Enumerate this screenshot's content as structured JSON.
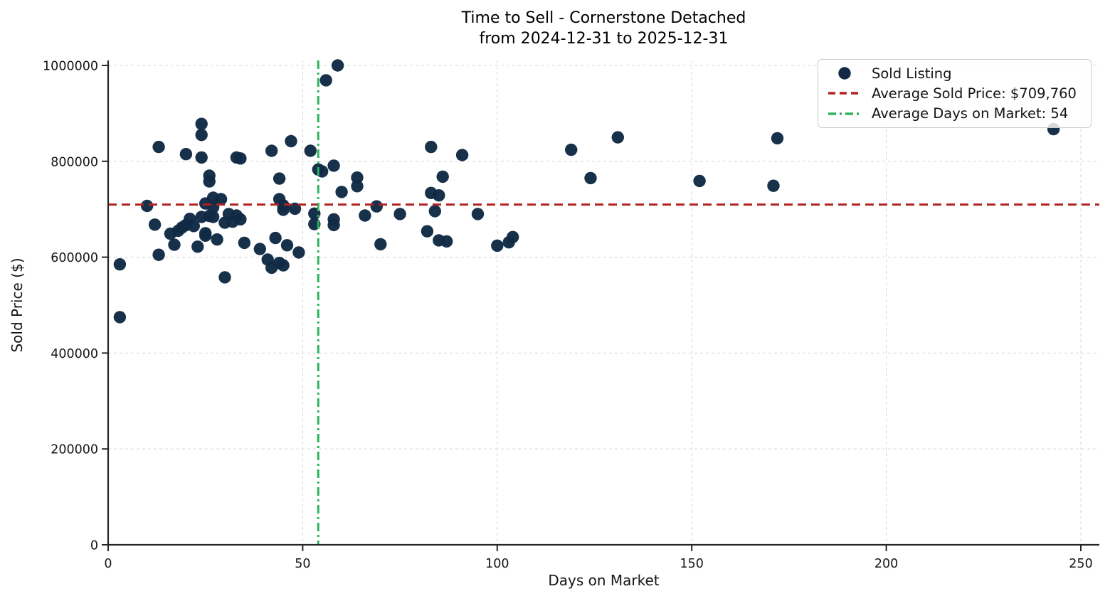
{
  "chart_data": {
    "type": "scatter",
    "title": "Time to Sell - Cornerstone Detached\nfrom 2024-12-31 to 2025-12-31",
    "title_lines": [
      "Time to Sell - Cornerstone Detached",
      "from 2024-12-31 to 2025-12-31"
    ],
    "xlabel": "Days on Market",
    "ylabel": "Sold Price ($)",
    "xlim": [
      0,
      250
    ],
    "ylim": [
      0,
      1000000
    ],
    "x_ticks": [
      0,
      50,
      100,
      150,
      200,
      250
    ],
    "y_ticks": [
      0,
      200000,
      400000,
      600000,
      800000,
      1000000
    ],
    "grid": true,
    "legend_position": "upper right",
    "avg_sold_price": 709760,
    "avg_days_on_market": 54,
    "legend": {
      "items": [
        {
          "label": "Sold Listing",
          "marker": "dot"
        },
        {
          "label": "Average Sold Price: $709,760",
          "marker": "dashed-line"
        },
        {
          "label": "Average Days on Market: 54",
          "marker": "dashdot-line"
        }
      ]
    },
    "colors": {
      "dot": "#112a45",
      "avg_price_line": "#b22222",
      "avg_dom_line": "#2db360",
      "grid": "#d8d8d8",
      "spine": "#262626"
    },
    "series": [
      {
        "name": "Sold Listing",
        "points": [
          [
            3,
            585000
          ],
          [
            3,
            475000
          ],
          [
            10,
            707000
          ],
          [
            12,
            668000
          ],
          [
            13,
            830000
          ],
          [
            13,
            605000
          ],
          [
            16,
            649000
          ],
          [
            17,
            626000
          ],
          [
            18,
            655000
          ],
          [
            19,
            662000
          ],
          [
            20,
            815000
          ],
          [
            20,
            667000
          ],
          [
            21,
            680000
          ],
          [
            22,
            665000
          ],
          [
            23,
            622000
          ],
          [
            24,
            878000
          ],
          [
            24,
            855000
          ],
          [
            24,
            808000
          ],
          [
            24,
            684000
          ],
          [
            25,
            712000
          ],
          [
            25,
            650000
          ],
          [
            25,
            645000
          ],
          [
            26,
            770000
          ],
          [
            26,
            758000
          ],
          [
            26,
            686000
          ],
          [
            27,
            724000
          ],
          [
            27,
            704000
          ],
          [
            27,
            684000
          ],
          [
            28,
            637000
          ],
          [
            29,
            721000
          ],
          [
            30,
            672000
          ],
          [
            30,
            558000
          ],
          [
            31,
            690000
          ],
          [
            32,
            674000
          ],
          [
            33,
            808000
          ],
          [
            33,
            687000
          ],
          [
            34,
            806000
          ],
          [
            34,
            679000
          ],
          [
            35,
            630000
          ],
          [
            39,
            617000
          ],
          [
            41,
            595000
          ],
          [
            42,
            822000
          ],
          [
            42,
            578000
          ],
          [
            43,
            640000
          ],
          [
            44,
            764000
          ],
          [
            44,
            721000
          ],
          [
            44,
            588000
          ],
          [
            45,
            708000
          ],
          [
            45,
            699000
          ],
          [
            45,
            583000
          ],
          [
            46,
            625000
          ],
          [
            47,
            842000
          ],
          [
            48,
            701000
          ],
          [
            49,
            610000
          ],
          [
            52,
            822000
          ],
          [
            53,
            691000
          ],
          [
            53,
            669000
          ],
          [
            54,
            783000
          ],
          [
            55,
            779000
          ],
          [
            56,
            969000
          ],
          [
            58,
            791000
          ],
          [
            58,
            679000
          ],
          [
            58,
            667000
          ],
          [
            59,
            1000000
          ],
          [
            60,
            736000
          ],
          [
            64,
            766000
          ],
          [
            64,
            748000
          ],
          [
            66,
            687000
          ],
          [
            69,
            706000
          ],
          [
            70,
            627000
          ],
          [
            75,
            690000
          ],
          [
            82,
            654000
          ],
          [
            83,
            830000
          ],
          [
            83,
            734000
          ],
          [
            84,
            696000
          ],
          [
            85,
            729000
          ],
          [
            85,
            635000
          ],
          [
            86,
            768000
          ],
          [
            87,
            633000
          ],
          [
            91,
            813000
          ],
          [
            95,
            690000
          ],
          [
            100,
            624000
          ],
          [
            103,
            631000
          ],
          [
            104,
            642000
          ],
          [
            119,
            824000
          ],
          [
            124,
            765000
          ],
          [
            131,
            850000
          ],
          [
            152,
            759000
          ],
          [
            171,
            749000
          ],
          [
            172,
            848000
          ],
          [
            243,
            867000
          ]
        ]
      }
    ]
  }
}
